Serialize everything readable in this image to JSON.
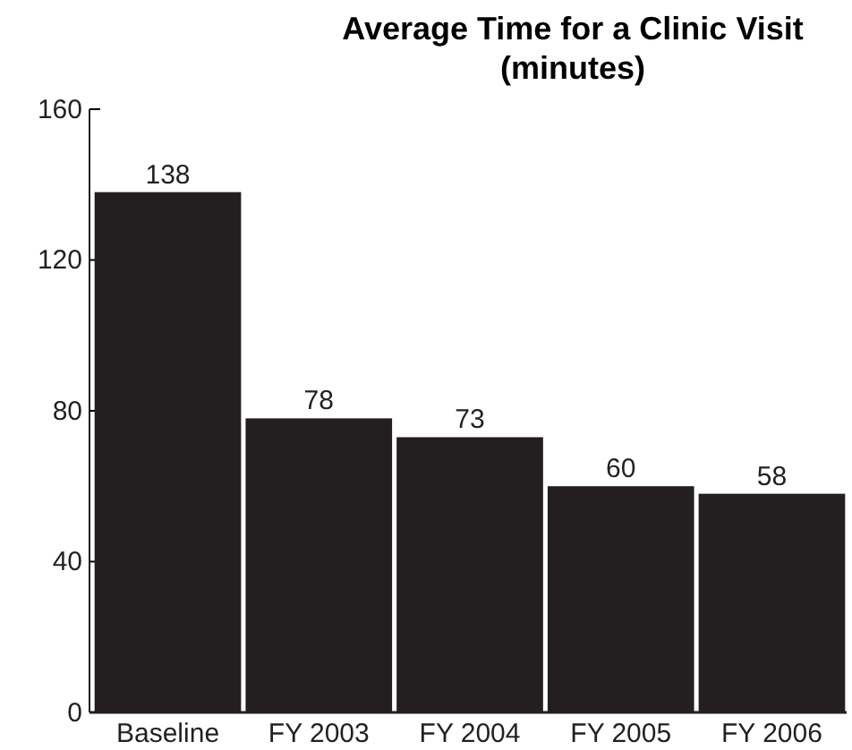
{
  "chart_data": {
    "type": "bar",
    "title": "Average Time for a Clinic Visit\n(minutes)",
    "categories": [
      "Baseline",
      "FY 2003",
      "FY 2004",
      "FY 2005",
      "FY 2006"
    ],
    "values": [
      138,
      78,
      73,
      60,
      58
    ],
    "color": "#231f20",
    "ylim": [
      0,
      160
    ],
    "yticks": [
      0,
      40,
      80,
      120,
      160
    ],
    "data_labels": true
  }
}
